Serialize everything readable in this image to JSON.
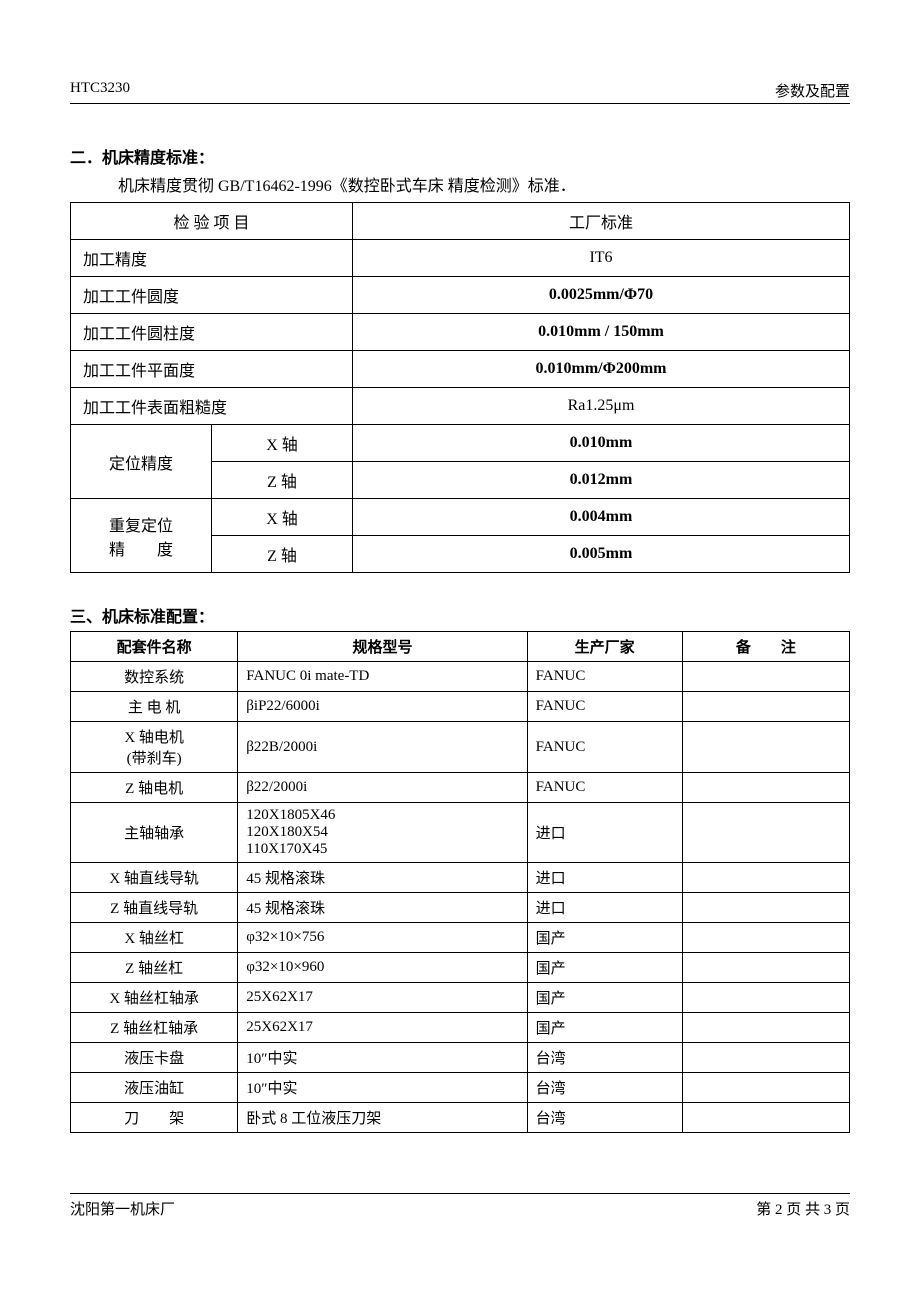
{
  "header": {
    "left": "HTC3230",
    "right": "参数及配置"
  },
  "section2": {
    "title": "二．机床精度标准：",
    "intro": "机床精度贯彻 GB/T16462-1996《数控卧式车床 精度检测》标准．",
    "columns": {
      "item": "检 验 项 目",
      "std": "工厂标准"
    },
    "simpleRows": [
      {
        "item": "加工精度",
        "value": "IT6",
        "bold": false
      },
      {
        "item": "加工工件圆度",
        "value": "0.0025mm/Φ70",
        "bold": true
      },
      {
        "item": "加工工件圆柱度",
        "value": "0.010mm / 150mm",
        "bold": true
      },
      {
        "item": "加工工件平面度",
        "value": "0.010mm/Φ200mm",
        "bold": true
      },
      {
        "item": "加工工件表面粗糙度",
        "value": "Ra1.25μm",
        "bold": false
      }
    ],
    "groupedRows": [
      {
        "label": "定位精度",
        "sub": [
          {
            "axis": "X 轴",
            "value": "0.010mm"
          },
          {
            "axis": "Z 轴",
            "value": "0.012mm"
          }
        ]
      },
      {
        "label": "重复定位\n精　　度",
        "sub": [
          {
            "axis": "X 轴",
            "value": "0.004mm"
          },
          {
            "axis": "Z 轴",
            "value": "0.005mm"
          }
        ]
      }
    ]
  },
  "section3": {
    "title": "三、机床标准配置：",
    "columns": {
      "name": "配套件名称",
      "spec": "规格型号",
      "mfr": "生产厂家",
      "note": "备　　注"
    },
    "rows": [
      {
        "name": "数控系统",
        "spec": "FANUC 0i mate-TD",
        "mfr": "FANUC",
        "note": ""
      },
      {
        "name": "主 电 机",
        "spec": "βiP22/6000i",
        "mfr": "FANUC",
        "note": ""
      },
      {
        "name": "X 轴电机\n(带刹车)",
        "spec": "β22B/2000i",
        "mfr": "FANUC",
        "note": ""
      },
      {
        "name": "Z 轴电机",
        "spec": "β22/2000i",
        "mfr": "FANUC",
        "note": ""
      },
      {
        "name": "主轴轴承",
        "spec": "120X1805X46\n120X180X54\n110X170X45",
        "mfr": "进口",
        "note": ""
      },
      {
        "name": "X 轴直线导轨",
        "spec": "45 规格滚珠",
        "mfr": "进口",
        "note": ""
      },
      {
        "name": "Z 轴直线导轨",
        "spec": "45 规格滚珠",
        "mfr": "进口",
        "note": ""
      },
      {
        "name": "X 轴丝杠",
        "spec": "φ32×10×756",
        "mfr": "国产",
        "note": ""
      },
      {
        "name": "Z 轴丝杠",
        "spec": "φ32×10×960",
        "mfr": "国产",
        "note": ""
      },
      {
        "name": "X 轴丝杠轴承",
        "spec": "25X62X17",
        "mfr": "国产",
        "note": ""
      },
      {
        "name": "Z 轴丝杠轴承",
        "spec": "25X62X17",
        "mfr": "国产",
        "note": ""
      },
      {
        "name": "液压卡盘",
        "spec": "10″中实",
        "mfr": "台湾",
        "note": ""
      },
      {
        "name": "液压油缸",
        "spec": "10″中实",
        "mfr": "台湾",
        "note": ""
      },
      {
        "name": "刀　　架",
        "spec": "卧式 8 工位液压刀架",
        "mfr": "台湾",
        "note": ""
      }
    ]
  },
  "footer": {
    "left": "沈阳第一机床厂",
    "right": "第 2 页 共 3 页"
  }
}
